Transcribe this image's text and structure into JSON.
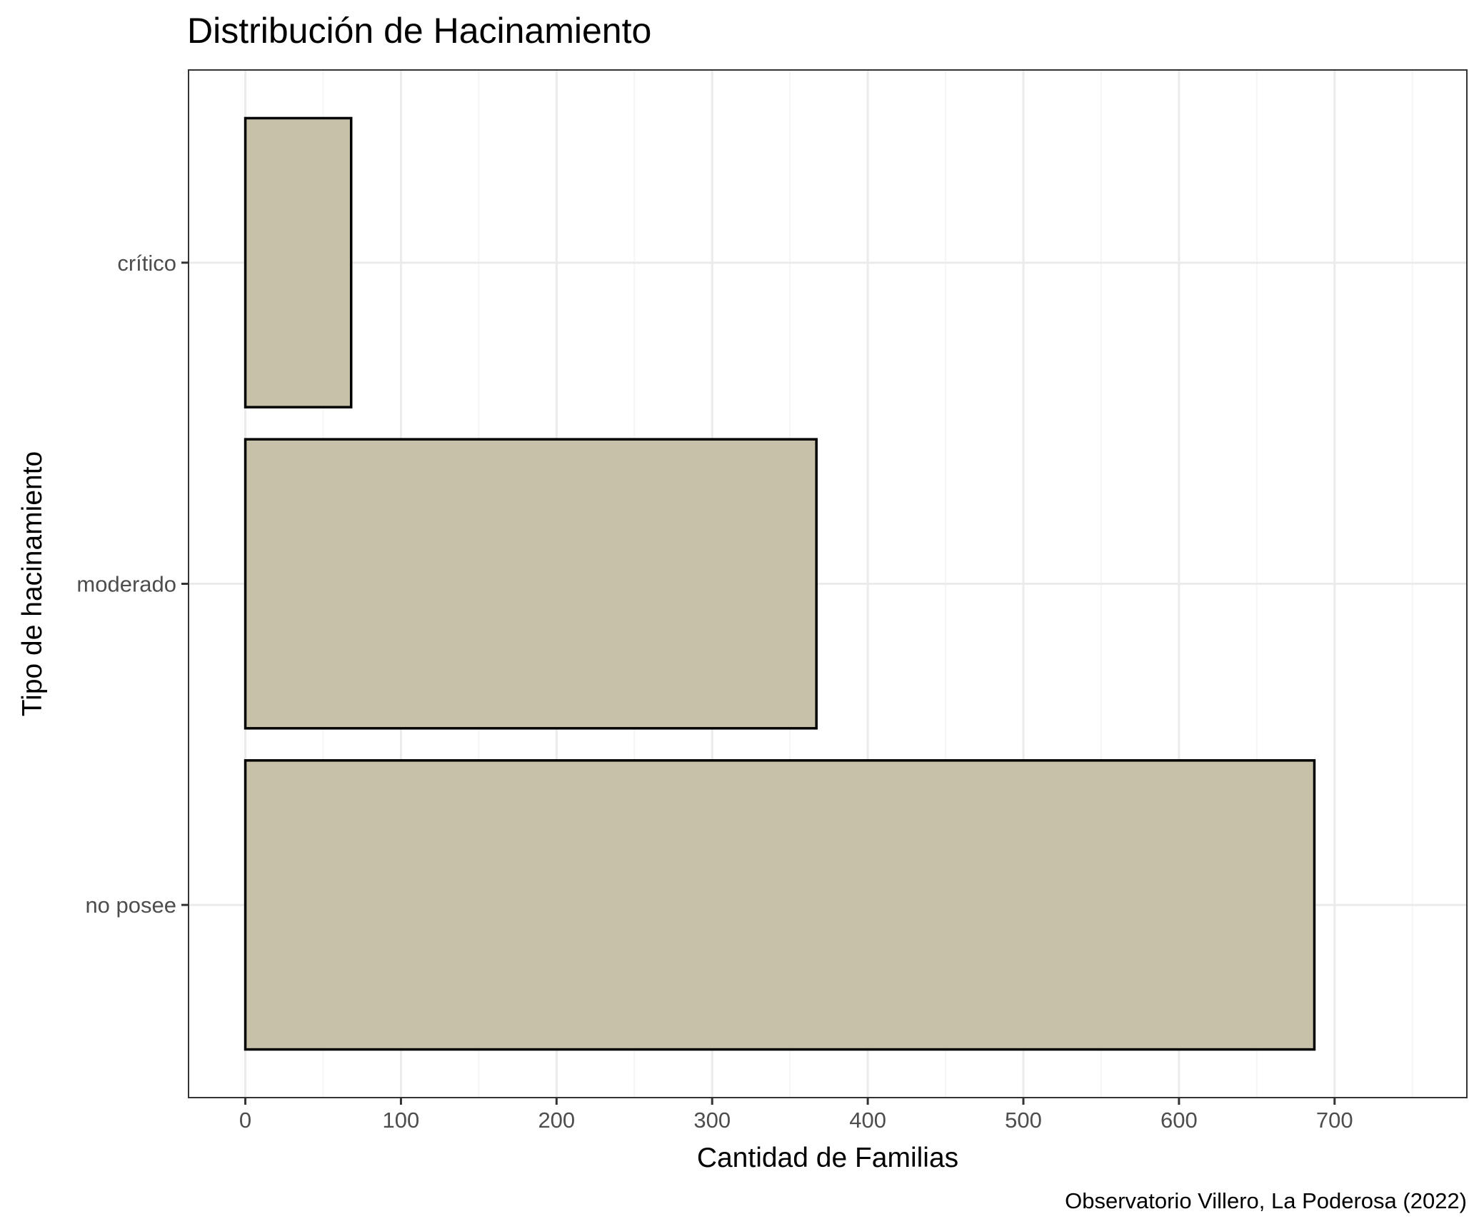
{
  "chart_data": {
    "type": "bar",
    "orientation": "horizontal",
    "title": "Distribución de Hacinamiento",
    "xlabel": "Cantidad de Familias",
    "ylabel": "Tipo de hacinamiento",
    "caption": "Observatorio Villero, La Poderosa (2022)",
    "categories": [
      "crítico",
      "moderado",
      "no posee"
    ],
    "values": [
      68,
      367,
      687
    ],
    "xlim": [
      -36.5,
      785
    ],
    "x_ticks": [
      0,
      100,
      200,
      300,
      400,
      500,
      600,
      700
    ],
    "x_tick_labels": [
      "0",
      "100",
      "200",
      "300",
      "400",
      "500",
      "600",
      "700"
    ],
    "grid": true,
    "legend": "none",
    "colors": {
      "bar_fill": "#c8c1aa",
      "bar_stroke": "#000000",
      "grid_major": "#ebebeb",
      "grid_minor": "#f5f5f5",
      "panel_border": "#333333",
      "tick_text": "#4d4d4d"
    }
  }
}
